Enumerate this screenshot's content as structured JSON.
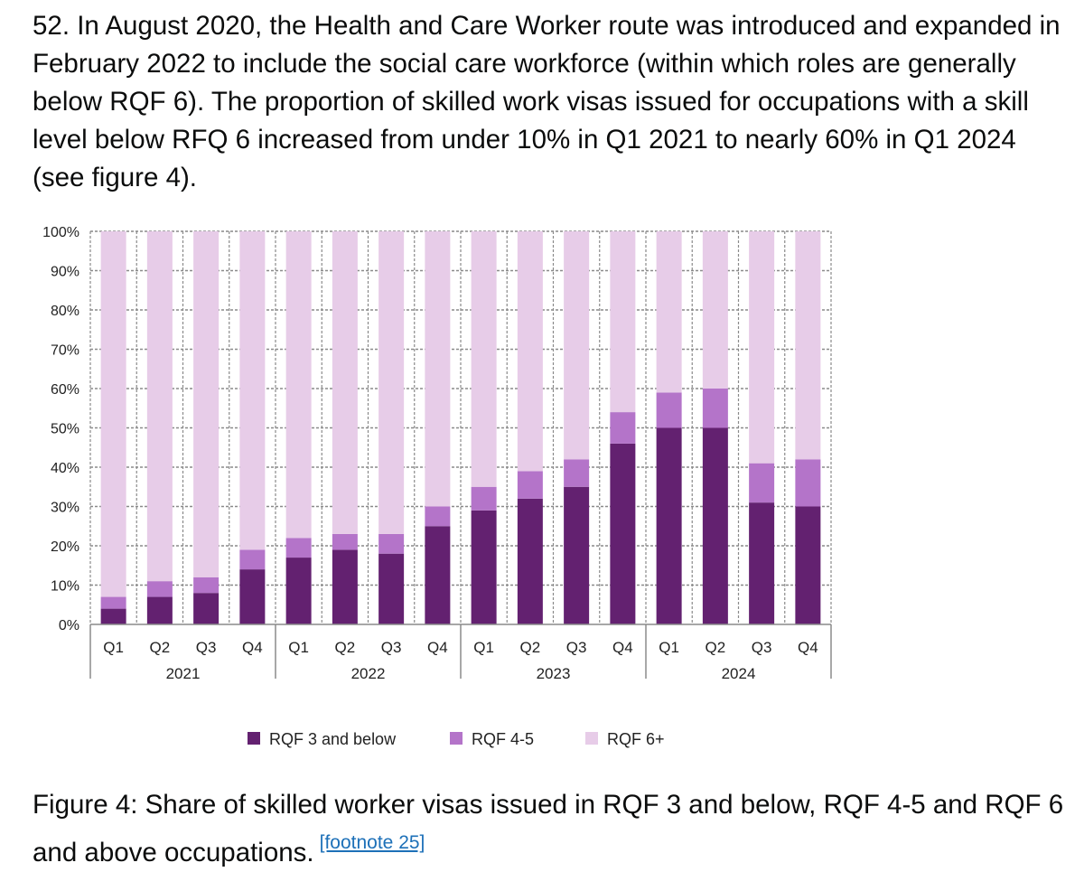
{
  "intro": {
    "paragraph": "52. In August 2020, the Health and Care Worker route was introduced and expanded in February 2022 to include the social care workforce (within which roles are generally below RQF 6). The proportion of skilled work visas issued for occupations with a skill level below RFQ 6 increased from under 10% in Q1 2021 to nearly 60% in Q1 2024 (see figure 4)."
  },
  "chart_data": {
    "type": "bar",
    "stacked": true,
    "quarters": [
      "Q1",
      "Q2",
      "Q3",
      "Q4",
      "Q1",
      "Q2",
      "Q3",
      "Q4",
      "Q1",
      "Q2",
      "Q3",
      "Q4",
      "Q1",
      "Q2",
      "Q3",
      "Q4"
    ],
    "years": [
      "2021",
      "2022",
      "2023",
      "2024"
    ],
    "series": [
      {
        "name": "RQF 3 and below",
        "color": "#632170",
        "values": [
          4,
          7,
          8,
          14,
          17,
          19,
          18,
          25,
          29,
          32,
          35,
          46,
          50,
          50,
          31,
          30
        ]
      },
      {
        "name": "RQF 4-5",
        "color": "#b474c9",
        "values": [
          3,
          4,
          4,
          5,
          5,
          4,
          5,
          5,
          6,
          7,
          7,
          8,
          9,
          10,
          10,
          12
        ]
      },
      {
        "name": "RQF 6+",
        "color": "#e7cce8",
        "values": [
          93,
          89,
          88,
          81,
          78,
          77,
          77,
          70,
          65,
          61,
          58,
          46,
          41,
          40,
          59,
          58
        ]
      }
    ],
    "yticks": [
      "0%",
      "10%",
      "20%",
      "30%",
      "40%",
      "50%",
      "60%",
      "70%",
      "80%",
      "90%",
      "100%"
    ],
    "ylim": [
      0,
      100
    ],
    "legend_position": "bottom",
    "grid": true
  },
  "caption": {
    "text": "Figure 4: Share of skilled worker visas issued in RQF 3 and below, RQF 4-5 and RQF 6 and above occupations.",
    "footnote": "[footnote 25]"
  }
}
